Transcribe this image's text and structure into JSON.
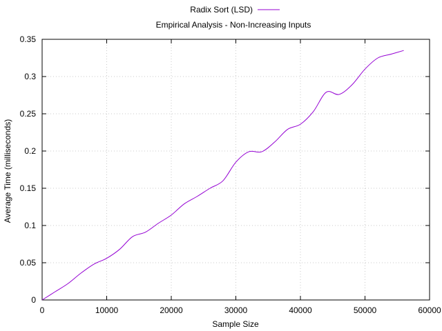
{
  "chart_data": {
    "type": "line",
    "title": "Empirical Analysis - Non-Increasing Inputs",
    "xlabel": "Sample Size",
    "ylabel": "Average Time (milliseconds)",
    "xlim": [
      0,
      60000
    ],
    "ylim": [
      0,
      0.35
    ],
    "xticks": [
      0,
      10000,
      20000,
      30000,
      40000,
      50000,
      60000
    ],
    "yticks": [
      0,
      0.05,
      0.1,
      0.15,
      0.2,
      0.25,
      0.3,
      0.35
    ],
    "xtick_labels": [
      "0",
      "10000",
      "20000",
      "30000",
      "40000",
      "50000",
      "60000"
    ],
    "ytick_labels": [
      "0",
      "0.05",
      "0.1",
      "0.15",
      "0.2",
      "0.25",
      "0.3",
      "0.35"
    ],
    "grid": true,
    "legend_position": "top-center",
    "series": [
      {
        "name": "Radix Sort (LSD)",
        "color": "#9400d3",
        "x": [
          0,
          2000,
          4000,
          6000,
          8000,
          10000,
          12000,
          14000,
          16000,
          18000,
          20000,
          22000,
          24000,
          26000,
          28000,
          30000,
          32000,
          34000,
          36000,
          38000,
          40000,
          42000,
          44000,
          46000,
          48000,
          50000,
          52000,
          54000,
          56000
        ],
        "y": [
          0.0,
          0.011,
          0.022,
          0.036,
          0.048,
          0.056,
          0.068,
          0.085,
          0.091,
          0.103,
          0.114,
          0.129,
          0.139,
          0.15,
          0.16,
          0.185,
          0.199,
          0.199,
          0.212,
          0.229,
          0.236,
          0.253,
          0.279,
          0.276,
          0.289,
          0.31,
          0.325,
          0.33,
          0.335
        ]
      }
    ]
  }
}
